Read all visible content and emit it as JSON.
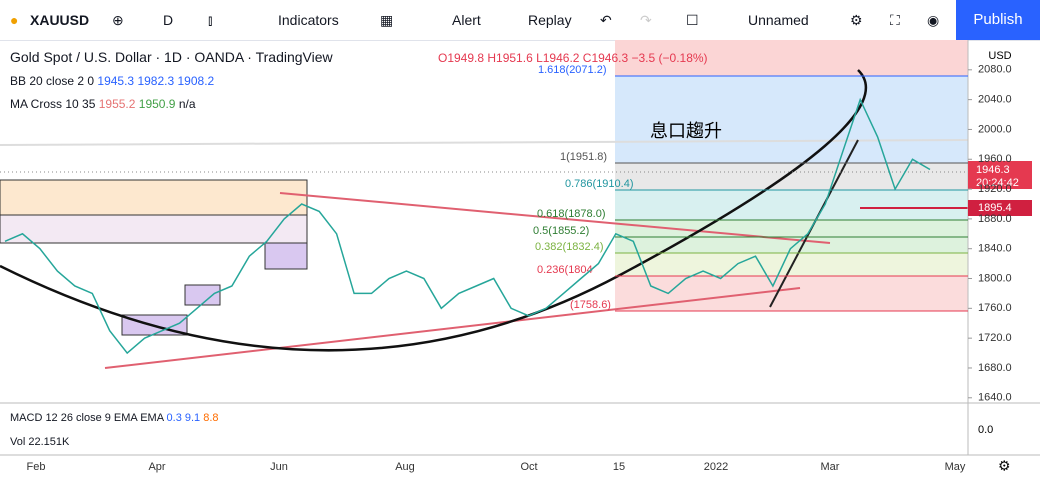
{
  "toolbar": {
    "symbol": "XAUUSD",
    "interval": "D",
    "indicators": "Indicators",
    "alert": "Alert",
    "replay": "Replay",
    "layout_name": "Unnamed",
    "publish": "Publish"
  },
  "legend": {
    "title": "Gold Spot / U.S. Dollar · 1D · OANDA · TradingView",
    "ohlc": "O1949.8 H1951.6 L1946.2 C1946.3 −3.5 (−0.18%)",
    "bb": {
      "label": "BB 20 close 2 0",
      "values": [
        "1945.3",
        "1982.3",
        "1908.2"
      ]
    },
    "ma": {
      "label": "MA Cross 10 35",
      "values": [
        "1955.2",
        "1950.9",
        "n/a"
      ]
    }
  },
  "chart": {
    "currency": "USD",
    "ylim": [
      1633,
      2120
    ],
    "yticks": [
      {
        "value": 2080,
        "label": "2080.0"
      },
      {
        "value": 2040,
        "label": "2040.0"
      },
      {
        "value": 2000,
        "label": "2000.0"
      },
      {
        "value": 1960,
        "label": "1960.0"
      },
      {
        "value": 1920,
        "label": "1920.0"
      },
      {
        "value": 1880,
        "label": "1880.0"
      },
      {
        "value": 1840,
        "label": "1840.0"
      },
      {
        "value": 1800,
        "label": "1800.0"
      },
      {
        "value": 1760,
        "label": "1760.0"
      },
      {
        "value": 1720,
        "label": "1720.0"
      },
      {
        "value": 1680,
        "label": "1680.0"
      },
      {
        "value": 1640,
        "label": "1640.0"
      }
    ],
    "price_values": [
      1850,
      1860,
      1840,
      1810,
      1790,
      1780,
      1730,
      1700,
      1720,
      1730,
      1740,
      1760,
      1780,
      1790,
      1830,
      1850,
      1880,
      1900,
      1890,
      1860,
      1780,
      1780,
      1800,
      1810,
      1800,
      1760,
      1780,
      1790,
      1800,
      1760,
      1750,
      1760,
      1780,
      1800,
      1820,
      1860,
      1850,
      1790,
      1780,
      1800,
      1810,
      1800,
      1820,
      1830,
      1790,
      1840,
      1860,
      1900,
      1970,
      2040,
      1990,
      1920,
      1960,
      1946.3
    ],
    "last_price": "1946.3",
    "countdown": "20:24:42",
    "marked_price": "1895.4",
    "fib_levels": [
      "1.618(2071.2)",
      "1(1951.8)",
      "0.786(1910.4)",
      "0.618(1878.0)",
      "0.5(1855.2)",
      "0.382(1832.4)",
      "0.236(1804",
      "(1758.6)"
    ],
    "annotation": "息口趨升",
    "time_labels": [
      "Feb",
      "Apr",
      "Jun",
      "Aug",
      "Oct",
      "15",
      "2022",
      "Mar",
      "May"
    ]
  },
  "macd": {
    "label": "MACD 12 26 close 9 EMA EMA",
    "values": [
      "0.3",
      "9.1",
      "8.8"
    ],
    "zero": "0.0"
  },
  "volume": "Vol  22.151K"
}
